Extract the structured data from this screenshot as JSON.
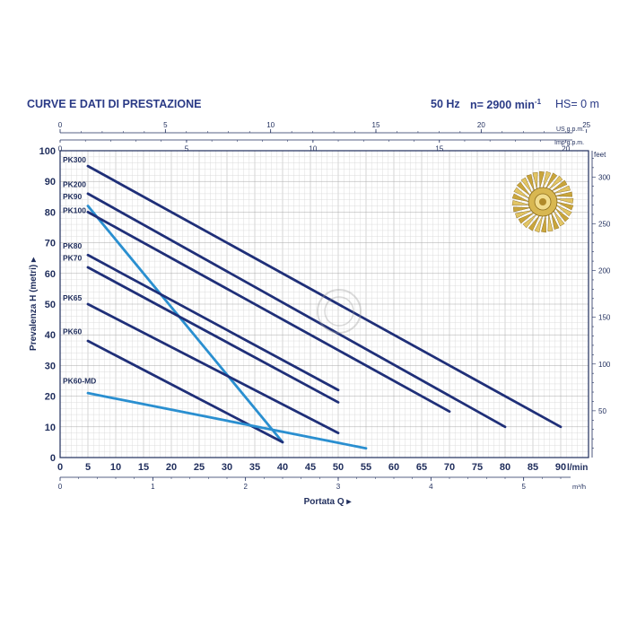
{
  "header": {
    "title": "CURVE E DATI DI PRESTAZIONE",
    "freq": "50 Hz",
    "speed": "n= 2900 min",
    "speed_exp": "-1",
    "hs": "HS= 0 m"
  },
  "chart_data": {
    "type": "line",
    "title": "CURVE E DATI DI PRESTAZIONE",
    "xlabel": "Portata Q",
    "ylabel": "Prevalenza H (metri)",
    "xlim": [
      0,
      95
    ],
    "ylim": [
      0,
      100
    ],
    "x_unit": "l/min",
    "x_ticks": [
      0,
      5,
      10,
      15,
      20,
      25,
      30,
      35,
      40,
      45,
      50,
      55,
      60,
      65,
      70,
      75,
      80,
      85,
      90
    ],
    "y_ticks": [
      0,
      10,
      20,
      30,
      40,
      50,
      60,
      70,
      80,
      90,
      100
    ],
    "top_axis_us": {
      "label": "US g.p.m.",
      "ticks": [
        0,
        5,
        10,
        15,
        20,
        25
      ]
    },
    "top_axis_imp": {
      "label": "Imp g.p.m.",
      "ticks": [
        0,
        5,
        10,
        15,
        20
      ]
    },
    "bottom_axis_m3h": {
      "label": "m³/h",
      "ticks": [
        0,
        1,
        2,
        3,
        4,
        5
      ]
    },
    "right_axis_feet": {
      "label": "feet",
      "ticks": [
        50,
        100,
        150,
        200,
        250,
        300
      ]
    },
    "series": [
      {
        "name": "PK300",
        "x": [
          5,
          90
        ],
        "y": [
          95,
          10
        ],
        "color": "#1f2f78"
      },
      {
        "name": "PK200",
        "x": [
          5,
          80
        ],
        "y": [
          86,
          10
        ],
        "color": "#1f2f78"
      },
      {
        "name": "PK90",
        "x": [
          5,
          40
        ],
        "y": [
          82,
          5
        ],
        "color": "#2a8fd0"
      },
      {
        "name": "PK100",
        "x": [
          5,
          70
        ],
        "y": [
          80,
          15
        ],
        "color": "#1f2f78"
      },
      {
        "name": "PK80",
        "x": [
          5,
          50
        ],
        "y": [
          66,
          22
        ],
        "color": "#1f2f78"
      },
      {
        "name": "PK70",
        "x": [
          5,
          50
        ],
        "y": [
          62,
          18
        ],
        "color": "#1f2f78"
      },
      {
        "name": "PK65",
        "x": [
          5,
          50
        ],
        "y": [
          50,
          8
        ],
        "color": "#1f2f78"
      },
      {
        "name": "PK60",
        "x": [
          5,
          40
        ],
        "y": [
          38,
          5
        ],
        "color": "#1f2f78"
      },
      {
        "name": "PK60-MD",
        "x": [
          5,
          55
        ],
        "y": [
          21,
          3
        ],
        "color": "#2a8fd0"
      }
    ]
  },
  "colors": {
    "dark_series": "#1f2f78",
    "light_series": "#2a8fd0",
    "grid": "#c9c9c9",
    "axis_text": "#1f2d5c"
  },
  "icons": {
    "impeller": "impeller-icon"
  }
}
